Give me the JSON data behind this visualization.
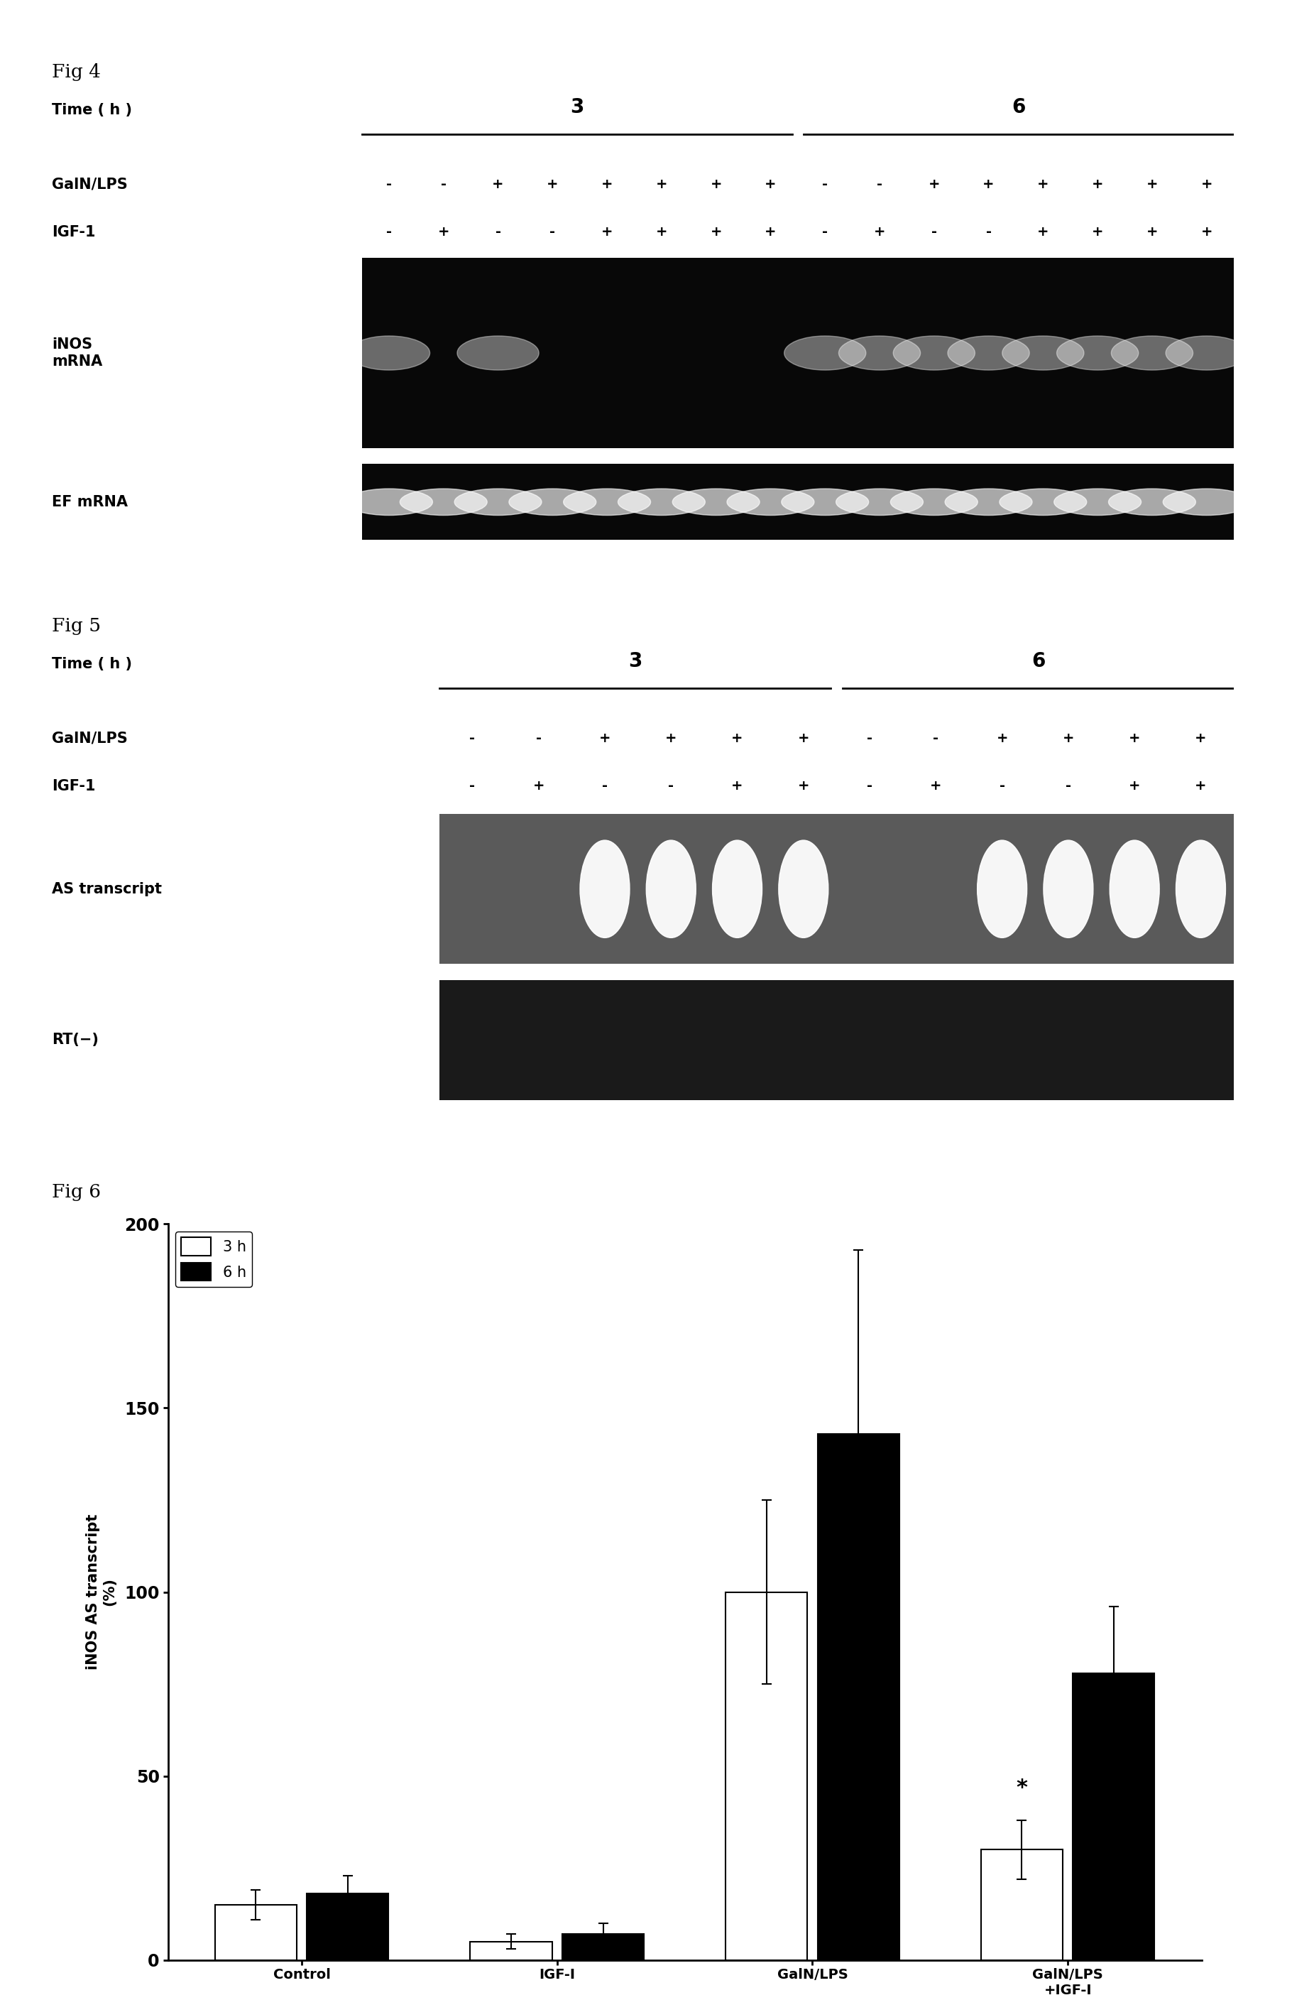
{
  "fig4": {
    "label": "Fig 4",
    "galn_lps": [
      "-",
      "-",
      "+",
      "+",
      "+",
      "+",
      "+",
      "+",
      "-",
      "-",
      "+",
      "+",
      "+",
      "+",
      "+",
      "+"
    ],
    "igf1": [
      "-",
      "+",
      "-",
      "-",
      "+",
      "+",
      "+",
      "+",
      "-",
      "+",
      "-",
      "-",
      "+",
      "+",
      "+",
      "+"
    ],
    "inos_bands": [
      0,
      2,
      4,
      8,
      9,
      10,
      11,
      12,
      13,
      14,
      15
    ],
    "ef_bands": [
      0,
      1,
      2,
      3,
      4,
      5,
      6,
      7,
      8,
      9,
      10,
      11,
      12,
      13,
      14,
      15
    ],
    "n_lanes": 16
  },
  "fig5": {
    "label": "Fig 5",
    "galn_lps": [
      "-",
      "-",
      "+",
      "+",
      "+",
      "+",
      "-",
      "-",
      "+",
      "+",
      "+",
      "+"
    ],
    "igf1": [
      "-",
      "+",
      "-",
      "-",
      "+",
      "+",
      "-",
      "+",
      "-",
      "-",
      "+",
      "+"
    ],
    "as_bands": [
      2,
      3,
      4,
      5,
      8,
      9,
      10,
      11
    ],
    "n_lanes": 12
  },
  "fig6": {
    "label": "Fig 6",
    "ylabel": "iNOS AS transcript\n(%)",
    "categories": [
      "Control",
      "IGF-I",
      "GalN/LPS",
      "GalN/LPS\n+IGF-I"
    ],
    "values_3h": [
      15,
      5,
      100,
      30
    ],
    "values_6h": [
      18,
      7,
      143,
      78
    ],
    "error_3h": [
      4,
      2,
      25,
      8
    ],
    "error_6h": [
      5,
      3,
      50,
      18
    ],
    "ylim": [
      0,
      200
    ],
    "yticks": [
      0,
      50,
      100,
      150,
      200
    ],
    "color_3h": "#ffffff",
    "color_6h": "#000000",
    "legend_3h": "3 h",
    "legend_6h": "6 h",
    "asterisk": "*"
  },
  "background_color": "#ffffff"
}
